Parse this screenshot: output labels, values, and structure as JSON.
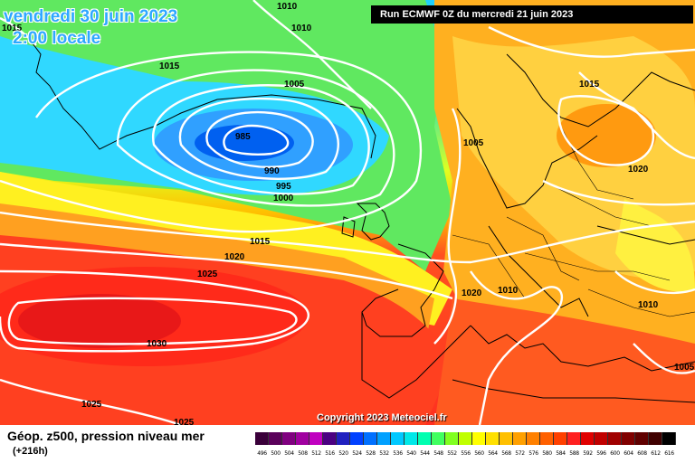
{
  "header": {
    "date_line": "vendredi 30 juin 2023",
    "time_line": "2:00 locale",
    "run": "Run ECMWF 0Z du mercredi 21 juin 2023"
  },
  "copyright": "Copyright 2023 Meteociel.fr",
  "footer": {
    "field_title": "Géop. z500, pression niveau mer",
    "lead_time": "(+216h)"
  },
  "legend": {
    "values": [
      "496",
      "500",
      "504",
      "508",
      "512",
      "516",
      "520",
      "524",
      "528",
      "532",
      "536",
      "540",
      "544",
      "548",
      "552",
      "556",
      "560",
      "564",
      "568",
      "572",
      "576",
      "580",
      "584",
      "588",
      "592",
      "596",
      "600",
      "604",
      "608",
      "612",
      "616"
    ],
    "colors": [
      "#3a003a",
      "#5a005a",
      "#800080",
      "#a000a0",
      "#c000c0",
      "#4b0082",
      "#2020c0",
      "#0040ff",
      "#0070ff",
      "#00a0ff",
      "#00c8ff",
      "#00e8e8",
      "#00ffb0",
      "#40ff60",
      "#80ff20",
      "#c0ff00",
      "#ffff00",
      "#ffe000",
      "#ffc000",
      "#ffa000",
      "#ff8000",
      "#ff6000",
      "#ff4000",
      "#ff2020",
      "#e00000",
      "#c00000",
      "#a00000",
      "#800000",
      "#600000",
      "#400000",
      "#000000"
    ]
  },
  "isobar_labels": [
    "1010",
    "1010",
    "1015",
    "1015",
    "1005",
    "985",
    "990",
    "995",
    "1000",
    "1005",
    "1015",
    "1020",
    "1025",
    "1020",
    "1010",
    "1015",
    "1020",
    "1010",
    "1030",
    "1025",
    "1005",
    "1025"
  ]
}
